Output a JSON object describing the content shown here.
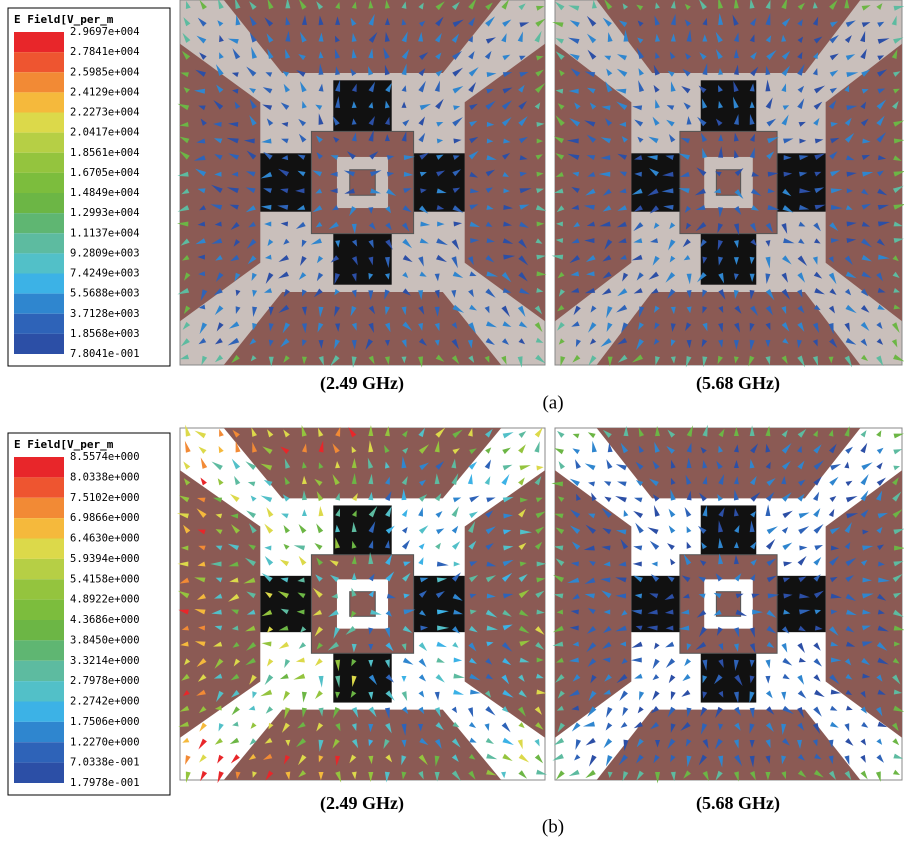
{
  "panels": [
    {
      "legend": {
        "title": "E Field[V_per_m",
        "labels": [
          "2.9697e+004",
          "2.7841e+004",
          "2.5985e+004",
          "2.4129e+004",
          "2.2273e+004",
          "2.0417e+004",
          "1.8561e+004",
          "1.6705e+004",
          "1.4849e+004",
          "1.2993e+004",
          "1.1137e+004",
          "9.2809e+003",
          "7.4249e+003",
          "5.5688e+003",
          "3.7128e+003",
          "1.8568e+003",
          "7.8041e-001"
        ]
      },
      "captions": [
        "(2.49 GHz)",
        "(5.68 GHz)"
      ],
      "label": "(a)"
    },
    {
      "legend": {
        "title": "E Field[V_per_m",
        "labels": [
          "8.5574e+000",
          "8.0338e+000",
          "7.5102e+000",
          "6.9866e+000",
          "6.4630e+000",
          "5.9394e+000",
          "5.4158e+000",
          "4.8922e+000",
          "4.3686e+000",
          "3.8450e+000",
          "3.3214e+000",
          "2.7978e+000",
          "2.2742e+000",
          "1.7506e+000",
          "1.2270e+000",
          "7.0338e-001",
          "1.7978e-001"
        ]
      },
      "captions": [
        "(2.49 GHz)",
        "(5.68 GHz)"
      ],
      "label": "(b)"
    }
  ]
}
